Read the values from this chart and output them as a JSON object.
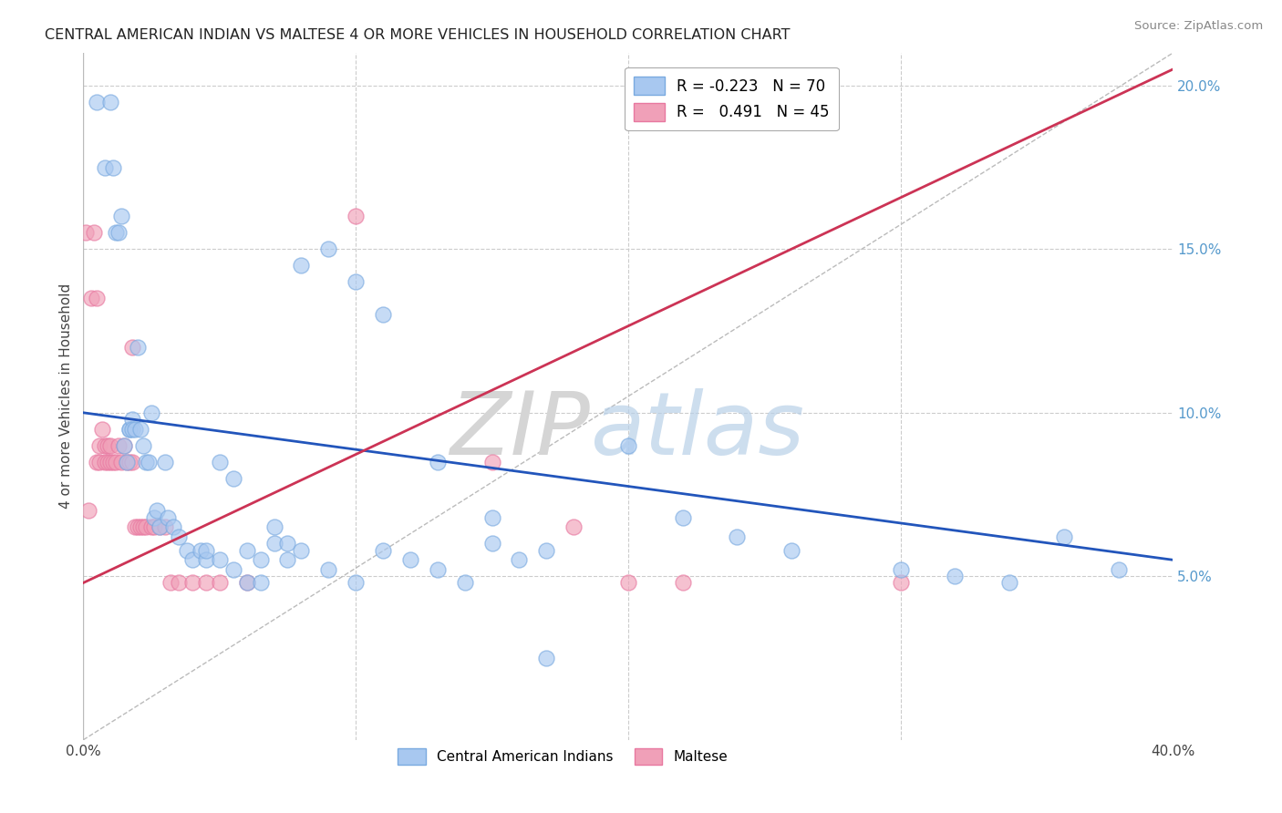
{
  "title": "CENTRAL AMERICAN INDIAN VS MALTESE 4 OR MORE VEHICLES IN HOUSEHOLD CORRELATION CHART",
  "source": "Source: ZipAtlas.com",
  "ylabel": "4 or more Vehicles in Household",
  "watermark_zip": "ZIP",
  "watermark_atlas": "atlas",
  "legend_blue": "R = -0.223   N = 70",
  "legend_pink": "R =   0.491   N = 45",
  "legend_labels": [
    "Central American Indians",
    "Maltese"
  ],
  "blue_color": "#a8c8f0",
  "pink_color": "#f0a0b8",
  "blue_edge": "#7aaae0",
  "pink_edge": "#e878a0",
  "blue_line_color": "#2255bb",
  "pink_line_color": "#cc3355",
  "background_color": "#ffffff",
  "grid_color": "#cccccc",
  "xlim": [
    0.0,
    0.4
  ],
  "ylim": [
    0.0,
    0.21
  ],
  "yticks": [
    0.05,
    0.1,
    0.15,
    0.2
  ],
  "ytick_labels": [
    "5.0%",
    "10.0%",
    "15.0%",
    "20.0%"
  ],
  "blue_trend_x": [
    0.0,
    0.4
  ],
  "blue_trend_y": [
    0.1,
    0.055
  ],
  "pink_trend_x": [
    0.0,
    0.4
  ],
  "pink_trend_y": [
    0.048,
    0.205
  ],
  "blue_x": [
    0.005,
    0.008,
    0.01,
    0.011,
    0.012,
    0.013,
    0.014,
    0.015,
    0.016,
    0.017,
    0.017,
    0.018,
    0.018,
    0.019,
    0.02,
    0.021,
    0.022,
    0.023,
    0.024,
    0.025,
    0.026,
    0.027,
    0.028,
    0.03,
    0.031,
    0.033,
    0.035,
    0.038,
    0.04,
    0.043,
    0.045,
    0.05,
    0.055,
    0.06,
    0.065,
    0.07,
    0.075,
    0.08,
    0.09,
    0.1,
    0.11,
    0.13,
    0.15,
    0.17,
    0.2,
    0.22,
    0.24,
    0.26,
    0.3,
    0.32,
    0.34,
    0.36,
    0.38,
    0.045,
    0.05,
    0.055,
    0.06,
    0.065,
    0.07,
    0.075,
    0.08,
    0.09,
    0.1,
    0.11,
    0.12,
    0.13,
    0.14,
    0.15,
    0.16,
    0.17
  ],
  "blue_y": [
    0.195,
    0.175,
    0.195,
    0.175,
    0.155,
    0.155,
    0.16,
    0.09,
    0.085,
    0.095,
    0.095,
    0.098,
    0.095,
    0.095,
    0.12,
    0.095,
    0.09,
    0.085,
    0.085,
    0.1,
    0.068,
    0.07,
    0.065,
    0.085,
    0.068,
    0.065,
    0.062,
    0.058,
    0.055,
    0.058,
    0.055,
    0.085,
    0.08,
    0.058,
    0.055,
    0.06,
    0.055,
    0.145,
    0.15,
    0.14,
    0.13,
    0.085,
    0.068,
    0.058,
    0.09,
    0.068,
    0.062,
    0.058,
    0.052,
    0.05,
    0.048,
    0.062,
    0.052,
    0.058,
    0.055,
    0.052,
    0.048,
    0.048,
    0.065,
    0.06,
    0.058,
    0.052,
    0.048,
    0.058,
    0.055,
    0.052,
    0.048,
    0.06,
    0.055,
    0.025
  ],
  "pink_x": [
    0.001,
    0.002,
    0.003,
    0.004,
    0.005,
    0.005,
    0.006,
    0.006,
    0.007,
    0.008,
    0.008,
    0.009,
    0.009,
    0.01,
    0.01,
    0.011,
    0.012,
    0.013,
    0.014,
    0.015,
    0.016,
    0.017,
    0.018,
    0.018,
    0.019,
    0.02,
    0.021,
    0.022,
    0.023,
    0.025,
    0.026,
    0.028,
    0.03,
    0.032,
    0.035,
    0.04,
    0.045,
    0.05,
    0.06,
    0.1,
    0.15,
    0.18,
    0.2,
    0.22,
    0.3
  ],
  "pink_y": [
    0.155,
    0.07,
    0.135,
    0.155,
    0.135,
    0.085,
    0.09,
    0.085,
    0.095,
    0.09,
    0.085,
    0.09,
    0.085,
    0.09,
    0.085,
    0.085,
    0.085,
    0.09,
    0.085,
    0.09,
    0.085,
    0.085,
    0.085,
    0.12,
    0.065,
    0.065,
    0.065,
    0.065,
    0.065,
    0.065,
    0.065,
    0.065,
    0.065,
    0.048,
    0.048,
    0.048,
    0.048,
    0.048,
    0.048,
    0.16,
    0.085,
    0.065,
    0.048,
    0.048,
    0.048
  ]
}
